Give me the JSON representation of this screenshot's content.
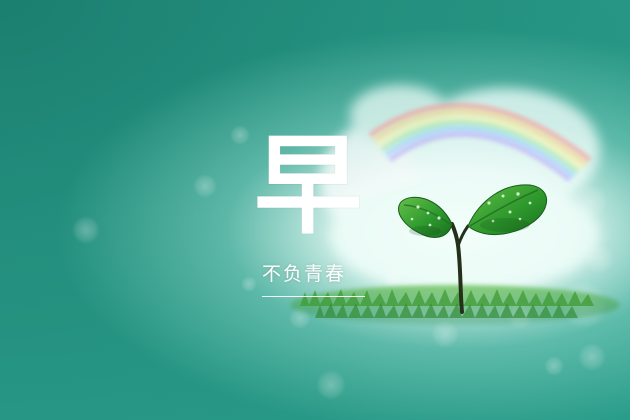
{
  "calligraphy_char": "早",
  "tagline": "不负青春",
  "colors": {
    "background": "#218f7d",
    "glow": "#f2fffb",
    "leaf": "#3aa02f",
    "stem": "#2b3a1e",
    "grass": "#4aa83a"
  },
  "icons": [
    "rainbow",
    "sprout",
    "bokeh-circles"
  ]
}
